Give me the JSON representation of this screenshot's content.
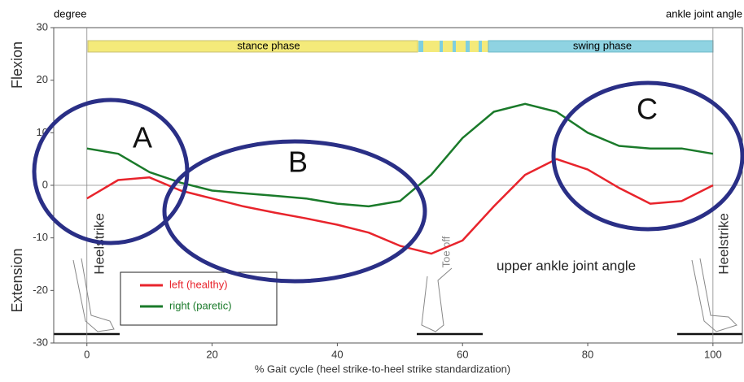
{
  "chart_data": {
    "type": "line",
    "title": "ankle joint angle",
    "y_unit": "degree",
    "y_label_top": "Flexion",
    "y_label_bottom": "Extension",
    "xlabel": "% Gait cycle (heel strike-to-heel strike standardization)",
    "phases": [
      "stance phase",
      "swing phase"
    ],
    "annotations": [
      "A",
      "B",
      "C",
      "Heelstrike",
      "Heelstrike",
      "Toe off",
      "upper ankle joint angle"
    ],
    "x": [
      0,
      5,
      10,
      15,
      20,
      25,
      30,
      35,
      40,
      45,
      50,
      55,
      60,
      65,
      70,
      75,
      80,
      85,
      90,
      95,
      100
    ],
    "series": [
      {
        "name": "left (healthy)",
        "color": "#e8242c",
        "values": [
          -2.5,
          1,
          1.5,
          -1,
          -2.5,
          -4,
          -5.2,
          -6.3,
          -7.5,
          -9,
          -11.5,
          -13,
          -10.5,
          -4,
          2,
          5,
          3,
          -0.5,
          -3.5,
          -3,
          0
        ]
      },
      {
        "name": "right (paretic)",
        "color": "#1a7a2a",
        "values": [
          7,
          6,
          2.5,
          0.5,
          -1,
          -1.5,
          -2,
          -2.5,
          -3.5,
          -4,
          -3,
          2,
          9,
          14,
          15.5,
          14,
          10,
          7.5,
          7,
          7,
          6
        ]
      }
    ],
    "xlim": [
      -5.3,
      104.7
    ],
    "ylim": [
      -30,
      30
    ],
    "xticks": [
      0,
      20,
      40,
      60,
      80,
      100
    ],
    "yticks": [
      -30,
      -20,
      -10,
      0,
      10,
      20,
      30
    ]
  }
}
